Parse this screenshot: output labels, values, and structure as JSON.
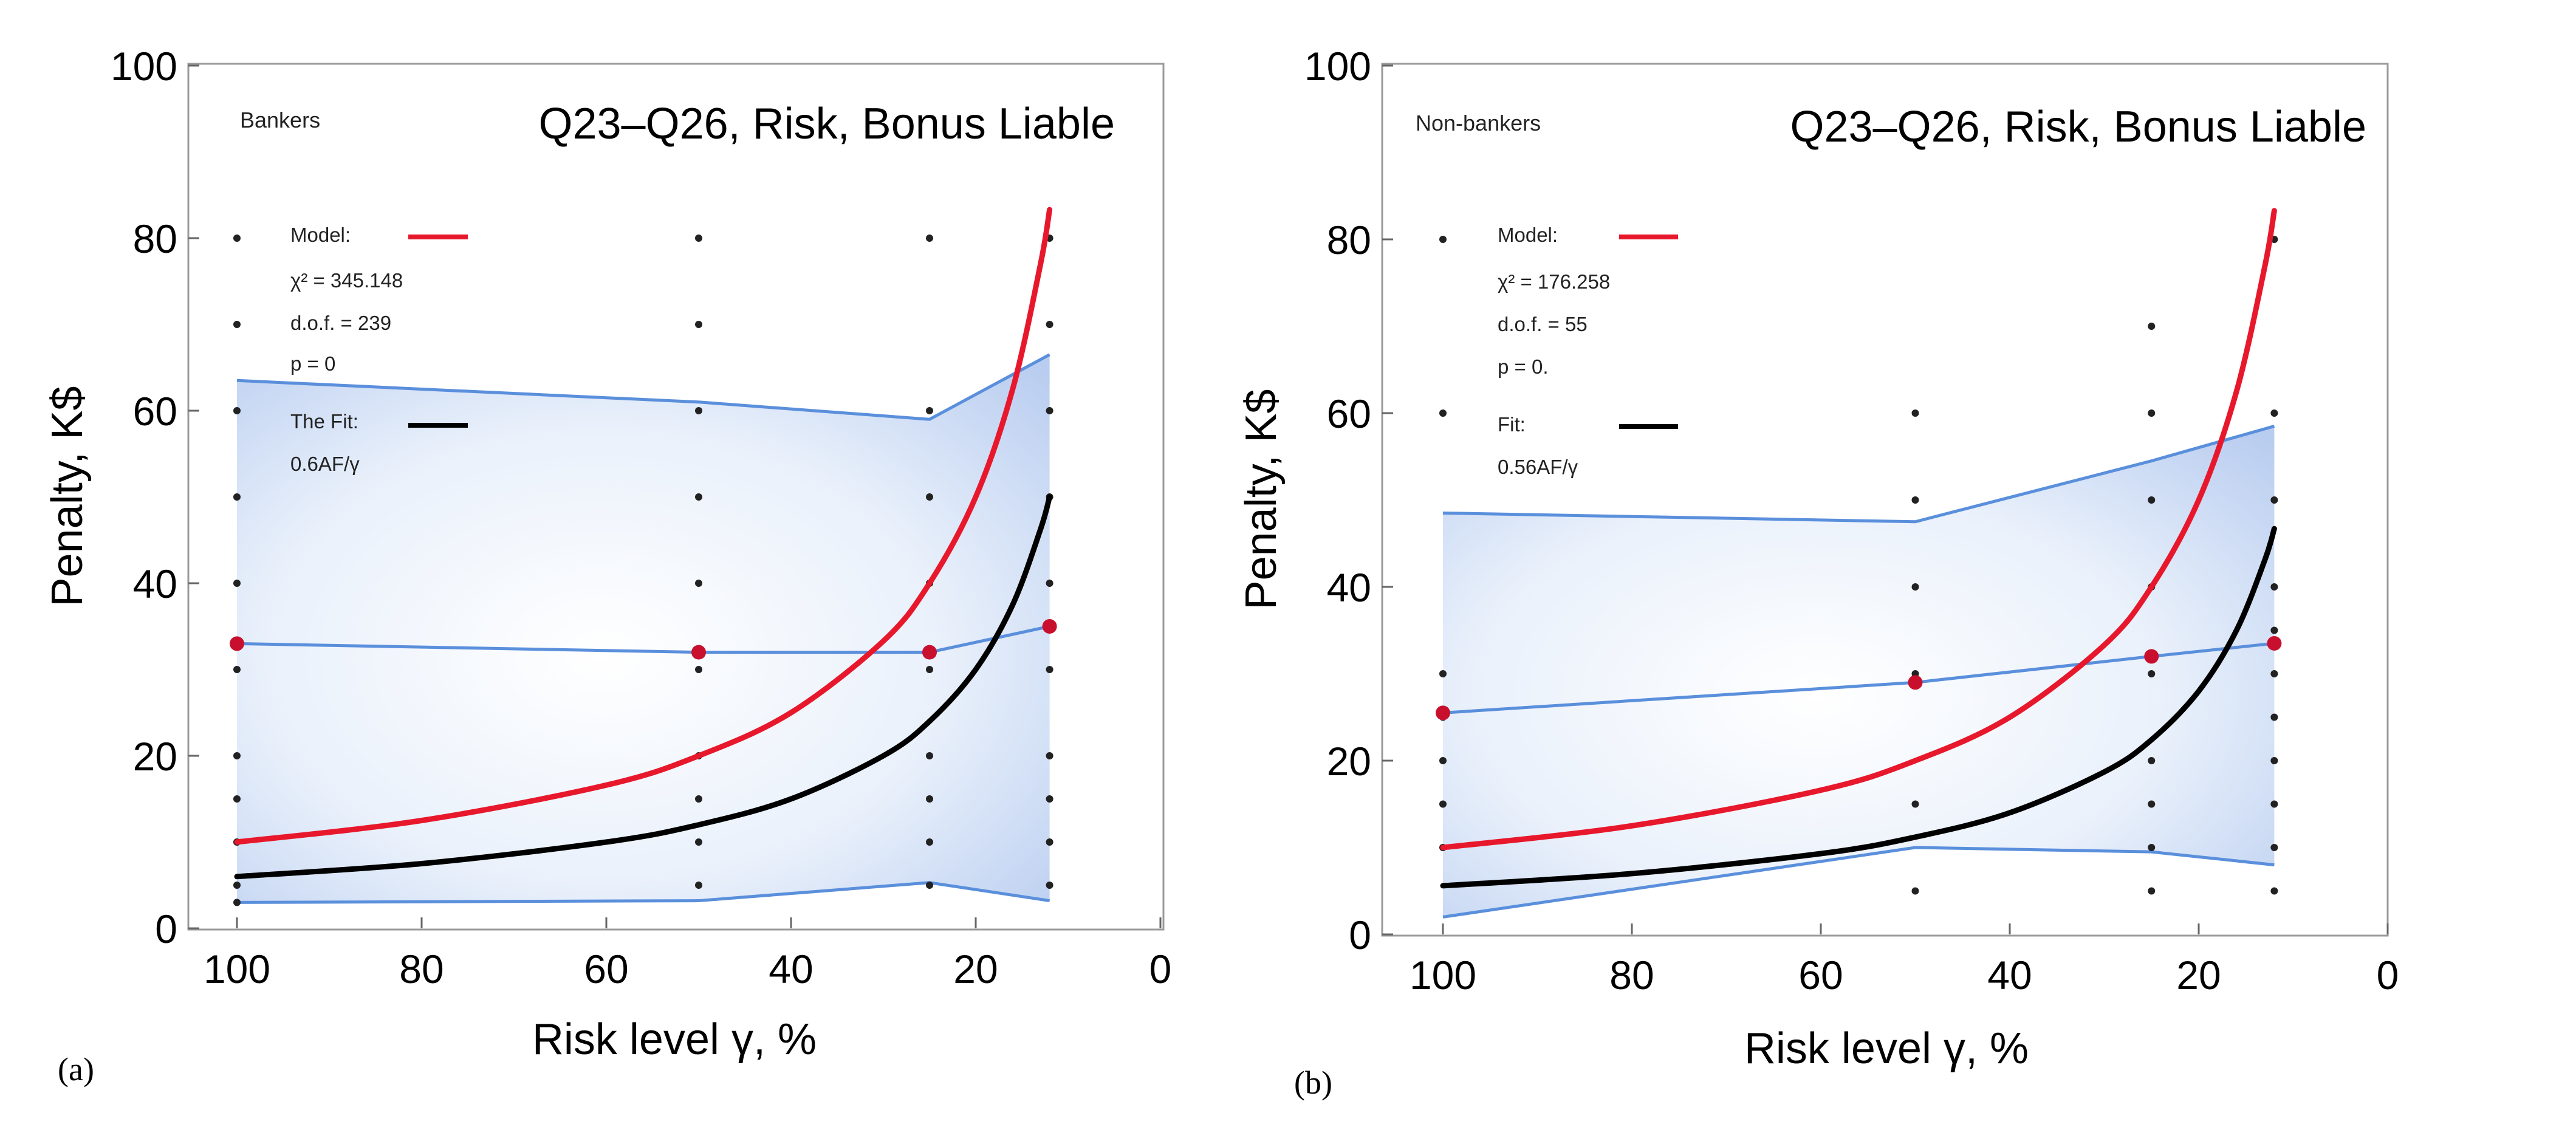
{
  "panel_labels": [
    "(a)",
    "(b)"
  ],
  "chart_data": [
    {
      "type": "line",
      "title": "Q23–Q26, Risk, Bonus Liable",
      "group_label": "Bankers",
      "xlabel": "Risk level γ, %",
      "ylabel": "Penalty, K$",
      "xlim": [
        100,
        0
      ],
      "ylim": [
        0,
        100
      ],
      "x_ticks": [
        100,
        80,
        60,
        40,
        20,
        0
      ],
      "y_ticks": [
        0,
        20,
        40,
        60,
        80,
        100
      ],
      "legend_placement": "top-left",
      "legend": {
        "model_label": "Model:",
        "stats": [
          "χ² = 345.148",
          "d.o.f. = 239",
          "p = 0"
        ],
        "fit_label": "The Fit:",
        "fit_formula": "0.6AF/γ"
      },
      "colors": {
        "model": "#e8182c",
        "fit": "#000000",
        "band": "#5a8fdc",
        "mean_points": "#c8102e",
        "raw_points": "#222222"
      },
      "series": [
        {
          "role": "model",
          "x": [
            100,
            80,
            60,
            50,
            40,
            30,
            25,
            20,
            16,
            13,
            12
          ],
          "y": [
            10,
            12.5,
            16.6,
            20,
            25,
            33.3,
            40,
            50,
            62.5,
            76.9,
            83.3
          ]
        },
        {
          "role": "fit",
          "x": [
            100,
            80,
            60,
            50,
            40,
            30,
            25,
            20,
            16,
            13,
            12
          ],
          "y": [
            6,
            7.5,
            10,
            12,
            15,
            20,
            24,
            30,
            37.5,
            46.2,
            50
          ]
        },
        {
          "role": "band_upper",
          "x": [
            100,
            50,
            25,
            12
          ],
          "y": [
            63.5,
            61,
            59,
            66.5
          ]
        },
        {
          "role": "band_mean",
          "x": [
            100,
            50,
            25,
            12
          ],
          "y": [
            33,
            32,
            32,
            35
          ]
        },
        {
          "role": "band_lower",
          "x": [
            100,
            50,
            25,
            12
          ],
          "y": [
            3,
            3.2,
            5.3,
            3.2
          ]
        },
        {
          "role": "mean_points",
          "x": [
            100,
            50,
            25,
            12
          ],
          "y": [
            33,
            32,
            32,
            35
          ]
        }
      ],
      "raw_points": [
        [
          100,
          80
        ],
        [
          100,
          70
        ],
        [
          100,
          60
        ],
        [
          100,
          50
        ],
        [
          100,
          40
        ],
        [
          100,
          30
        ],
        [
          100,
          20
        ],
        [
          100,
          15
        ],
        [
          100,
          10
        ],
        [
          100,
          5
        ],
        [
          100,
          3
        ],
        [
          50,
          80
        ],
        [
          50,
          70
        ],
        [
          50,
          60
        ],
        [
          50,
          50
        ],
        [
          50,
          40
        ],
        [
          50,
          30
        ],
        [
          50,
          20
        ],
        [
          50,
          15
        ],
        [
          50,
          10
        ],
        [
          50,
          5
        ],
        [
          25,
          80
        ],
        [
          25,
          60
        ],
        [
          25,
          50
        ],
        [
          25,
          40
        ],
        [
          25,
          30
        ],
        [
          25,
          20
        ],
        [
          25,
          15
        ],
        [
          25,
          10
        ],
        [
          25,
          5
        ],
        [
          12,
          80
        ],
        [
          12,
          70
        ],
        [
          12,
          60
        ],
        [
          12,
          50
        ],
        [
          12,
          40
        ],
        [
          12,
          30
        ],
        [
          12,
          20
        ],
        [
          12,
          15
        ],
        [
          12,
          10
        ],
        [
          12,
          5
        ]
      ]
    },
    {
      "type": "line",
      "title": "Q23–Q26, Risk, Bonus Liable",
      "group_label": "Non-bankers",
      "xlabel": "Risk level γ, %",
      "ylabel": "Penalty, K$",
      "xlim": [
        100,
        0
      ],
      "ylim": [
        0,
        100
      ],
      "x_ticks": [
        100,
        80,
        60,
        40,
        20,
        0
      ],
      "y_ticks": [
        0,
        20,
        40,
        60,
        80,
        100
      ],
      "legend_placement": "top-left",
      "legend": {
        "model_label": "Model:",
        "stats": [
          "χ² = 176.258",
          "d.o.f. = 55",
          "p = 0."
        ],
        "fit_label": "Fit:",
        "fit_formula": "0.56AF/γ"
      },
      "colors": {
        "model": "#e8182c",
        "fit": "#000000",
        "band": "#5a8fdc",
        "mean_points": "#c8102e",
        "raw_points": "#222222"
      },
      "series": [
        {
          "role": "model",
          "x": [
            100,
            80,
            60,
            50,
            40,
            30,
            25,
            20,
            16,
            13,
            12
          ],
          "y": [
            10,
            12.5,
            16.6,
            20,
            25,
            33.3,
            40,
            50,
            62.5,
            76.9,
            83.3
          ]
        },
        {
          "role": "fit",
          "x": [
            100,
            80,
            60,
            50,
            40,
            30,
            25,
            20,
            16,
            13,
            12
          ],
          "y": [
            5.6,
            7,
            9.3,
            11.2,
            14,
            18.7,
            22.4,
            28,
            35,
            43.1,
            46.7
          ]
        },
        {
          "role": "band_upper",
          "x": [
            100,
            50,
            25,
            12
          ],
          "y": [
            48.5,
            47.5,
            54.5,
            58.5
          ]
        },
        {
          "role": "band_mean",
          "x": [
            100,
            50,
            25,
            12
          ],
          "y": [
            25.5,
            29,
            32,
            33.5
          ]
        },
        {
          "role": "band_lower",
          "x": [
            100,
            50,
            25,
            12
          ],
          "y": [
            2,
            10,
            9.5,
            8
          ]
        },
        {
          "role": "mean_points",
          "x": [
            100,
            50,
            25,
            12
          ],
          "y": [
            25.5,
            29,
            32,
            33.5
          ]
        }
      ],
      "raw_points": [
        [
          100,
          80
        ],
        [
          100,
          60
        ],
        [
          100,
          30
        ],
        [
          100,
          25
        ],
        [
          100,
          20
        ],
        [
          100,
          15
        ],
        [
          100,
          10
        ],
        [
          50,
          60
        ],
        [
          50,
          50
        ],
        [
          50,
          40
        ],
        [
          50,
          30
        ],
        [
          50,
          15
        ],
        [
          50,
          5
        ],
        [
          25,
          70
        ],
        [
          25,
          60
        ],
        [
          25,
          50
        ],
        [
          25,
          40
        ],
        [
          25,
          30
        ],
        [
          25,
          20
        ],
        [
          25,
          15
        ],
        [
          25,
          10
        ],
        [
          25,
          5
        ],
        [
          12,
          80
        ],
        [
          12,
          60
        ],
        [
          12,
          50
        ],
        [
          12,
          40
        ],
        [
          12,
          35
        ],
        [
          12,
          30
        ],
        [
          12,
          25
        ],
        [
          12,
          20
        ],
        [
          12,
          15
        ],
        [
          12,
          10
        ],
        [
          12,
          5
        ]
      ]
    }
  ]
}
